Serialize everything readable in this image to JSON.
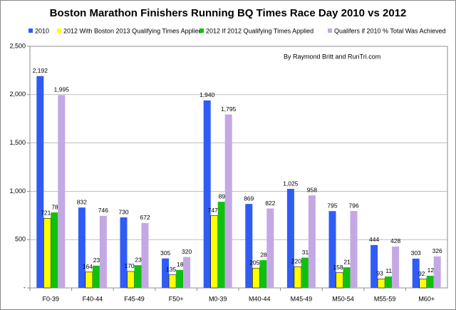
{
  "chart_data": {
    "type": "bar",
    "title": "Boston Marathon Finishers  Running BQ Times Race Day 2010 vs 2012",
    "annotation": "By Raymond Britt and RunTri.com",
    "categories": [
      "F0-39",
      "F40-44",
      "F45-49",
      "F50+",
      "M0-39",
      "M40-44",
      "M45-49",
      "M50-54",
      "M55-59",
      "M60+"
    ],
    "series": [
      {
        "name": "2010",
        "color": "#2f5cf5",
        "values": [
          2192,
          832,
          730,
          305,
          1940,
          869,
          1025,
          795,
          444,
          303
        ],
        "value_labels": [
          "2,192",
          "832",
          "730",
          "305",
          "1,940",
          "869",
          "1,025",
          "795",
          "444",
          "303"
        ]
      },
      {
        "name": "2012 With Boston 2013 Qualifying Times Applied",
        "color": "#ffff00",
        "values": [
          721,
          164,
          170,
          135,
          747,
          205,
          220,
          158,
          93,
          92
        ]
      },
      {
        "name": "2012 If 2012 Qualifying Times Applied",
        "color": "#10c010",
        "values": [
          781,
          230,
          235,
          186,
          891,
          287,
          313,
          213,
          118,
          126
        ]
      },
      {
        "name": "Qualifers if 2010 % Total Was Achieved",
        "color": "#c4a8e4",
        "values": [
          1995,
          746,
          672,
          320,
          1795,
          822,
          958,
          796,
          428,
          326
        ],
        "value_labels": [
          "1,995",
          "746",
          "672",
          "320",
          "1,795",
          "822",
          "958",
          "796",
          "428",
          "326"
        ]
      }
    ],
    "ylim": [
      0,
      2500
    ],
    "yticks": [
      {
        "value": 0,
        "label": "-"
      },
      500,
      {
        "value": 1000,
        "label": "1,000"
      },
      {
        "value": 1500,
        "label": "1,500"
      },
      {
        "value": 2000,
        "label": "2,000"
      },
      {
        "value": 2500,
        "label": "2,500"
      }
    ],
    "grid": true
  }
}
